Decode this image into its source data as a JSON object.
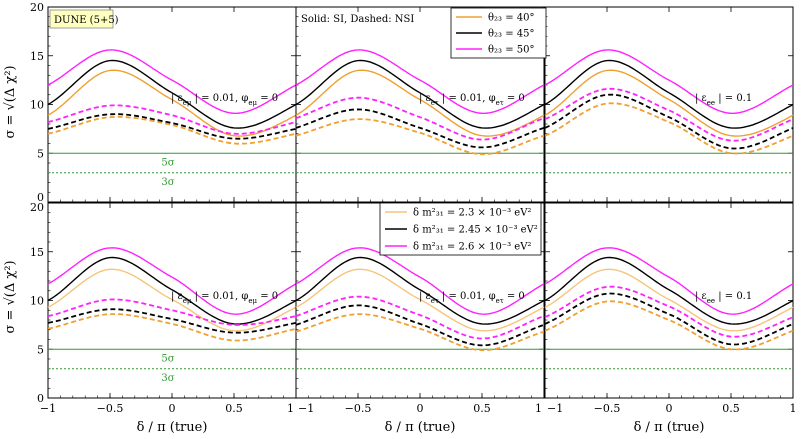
{
  "figure": {
    "ylabel": "σ = √(Δ χ²)",
    "xlabel": "δ / π (true)",
    "tag": "DUNE (5+5)",
    "line_style_note": "Solid: SI,  Dashed: NSI",
    "colors": {
      "orange": "#f0a030",
      "light_orange": "#f6c57a",
      "black": "#000000",
      "magenta": "#ff20ff",
      "green": "#2e9a2e"
    }
  },
  "chart_data": [
    {
      "type": "line",
      "row": 0,
      "col": 0,
      "annotation": "| ε_eμ | = 0.01, φ_eμ = 0",
      "x": [
        -1,
        -0.5,
        0,
        0.5,
        1
      ],
      "xlim": [
        -1,
        1
      ],
      "ylim": [
        0,
        20
      ],
      "xticks": [
        "-1",
        "-0.5",
        "0",
        "0.5",
        "1"
      ],
      "yticks": [
        "0",
        "5",
        "10",
        "15",
        "20"
      ],
      "xlabel": "",
      "ylabel": "σ = √(Δ χ²)",
      "grid": false,
      "series": [
        {
          "name": "θ₂₃ = 40°",
          "color": "#f0a030",
          "dash": false,
          "values": [
            8.9,
            13.5,
            10.5,
            6.8,
            8.9
          ]
        },
        {
          "name": "θ₂₃ = 45°",
          "color": "#000000",
          "dash": false,
          "values": [
            10.0,
            14.5,
            11.2,
            7.6,
            10.0
          ]
        },
        {
          "name": "θ₂₃ = 50°",
          "color": "#ff20ff",
          "dash": false,
          "values": [
            12.0,
            15.6,
            12.5,
            9.1,
            12.0
          ]
        },
        {
          "color": "#f0a030",
          "dash": true,
          "values": [
            7.0,
            8.7,
            7.9,
            6.0,
            7.0
          ]
        },
        {
          "color": "#000000",
          "dash": true,
          "values": [
            7.5,
            9.0,
            8.1,
            6.5,
            7.5
          ]
        },
        {
          "color": "#ff20ff",
          "dash": true,
          "values": [
            8.2,
            9.9,
            8.9,
            7.0,
            8.2
          ]
        }
      ],
      "reference_lines": [
        {
          "y": 5,
          "label": "5σ",
          "style": "solid"
        },
        {
          "y": 3,
          "label": "3σ",
          "style": "dashed"
        }
      ]
    },
    {
      "type": "line",
      "row": 0,
      "col": 1,
      "annotation": "| ε_eτ | = 0.01, φ_eτ = 0",
      "x": [
        -1,
        -0.5,
        0,
        0.5,
        1
      ],
      "xlim": [
        -1,
        1
      ],
      "ylim": [
        0,
        20
      ],
      "xticks": [
        "-1",
        "-0.5",
        "0",
        "0.5",
        "1"
      ],
      "yticks": [],
      "grid": false,
      "series": [
        {
          "color": "#f0a030",
          "dash": false,
          "values": [
            8.9,
            13.5,
            10.5,
            6.8,
            8.9
          ]
        },
        {
          "color": "#000000",
          "dash": false,
          "values": [
            10.0,
            14.5,
            11.2,
            7.6,
            10.0
          ]
        },
        {
          "color": "#ff20ff",
          "dash": false,
          "values": [
            12.0,
            15.6,
            12.5,
            9.1,
            12.0
          ]
        },
        {
          "color": "#f0a030",
          "dash": true,
          "values": [
            6.8,
            8.5,
            7.1,
            4.9,
            6.8
          ]
        },
        {
          "color": "#000000",
          "dash": true,
          "values": [
            7.6,
            9.5,
            7.6,
            5.6,
            7.6
          ]
        },
        {
          "color": "#ff20ff",
          "dash": true,
          "values": [
            8.6,
            10.7,
            8.7,
            6.4,
            8.6
          ]
        }
      ],
      "reference_lines": [
        {
          "y": 5,
          "style": "solid"
        },
        {
          "y": 3,
          "style": "dashed"
        }
      ]
    },
    {
      "type": "line",
      "row": 0,
      "col": 2,
      "annotation": "| ε_ee | = 0.1",
      "x": [
        -1,
        -0.5,
        0,
        0.5,
        1
      ],
      "xlim": [
        -1,
        1
      ],
      "ylim": [
        0,
        20
      ],
      "xticks": [
        "-1",
        "-0.5",
        "0",
        "0.5",
        "1"
      ],
      "yticks": [],
      "grid": false,
      "series": [
        {
          "color": "#f0a030",
          "dash": false,
          "values": [
            8.9,
            13.5,
            10.5,
            6.8,
            8.9
          ]
        },
        {
          "color": "#000000",
          "dash": false,
          "values": [
            10.0,
            14.5,
            11.2,
            7.6,
            10.0
          ]
        },
        {
          "color": "#ff20ff",
          "dash": false,
          "values": [
            12.0,
            15.6,
            12.5,
            9.1,
            12.0
          ]
        },
        {
          "color": "#f0a030",
          "dash": true,
          "values": [
            6.8,
            10.1,
            8.2,
            5.0,
            6.8
          ]
        },
        {
          "color": "#000000",
          "dash": true,
          "values": [
            7.6,
            11.0,
            8.7,
            5.5,
            7.6
          ]
        },
        {
          "color": "#ff20ff",
          "dash": true,
          "values": [
            8.5,
            11.6,
            9.4,
            6.3,
            8.5
          ]
        }
      ],
      "reference_lines": [
        {
          "y": 5,
          "style": "solid"
        },
        {
          "y": 3,
          "style": "dashed"
        }
      ]
    },
    {
      "type": "line",
      "row": 1,
      "col": 0,
      "annotation": "| ε_eμ | = 0.01, φ_eμ = 0",
      "x": [
        -1,
        -0.5,
        0,
        0.5,
        1
      ],
      "xlim": [
        -1,
        1
      ],
      "ylim": [
        0,
        20
      ],
      "xticks": [
        "-1",
        "-0.5",
        "0",
        "0.5",
        "1"
      ],
      "yticks": [
        "0",
        "5",
        "10",
        "15",
        "20"
      ],
      "xlabel": "δ / π (true)",
      "ylabel": "σ = √(Δ χ²)",
      "grid": false,
      "series": [
        {
          "name": "δ m²₃₁ = 2.3 × 10⁻³ eV²",
          "color": "#f6c57a",
          "dash": false,
          "values": [
            9.3,
            13.2,
            10.1,
            6.9,
            9.3
          ]
        },
        {
          "name": "δ m²₃₁ = 2.45 × 10⁻³ eV²",
          "color": "#000000",
          "dash": false,
          "values": [
            10.0,
            14.4,
            11.1,
            7.6,
            10.0
          ]
        },
        {
          "name": "δ m²₃₁ = 2.6 × 10⁻³ eV²",
          "color": "#ff20ff",
          "dash": false,
          "values": [
            11.7,
            15.4,
            12.4,
            8.6,
            11.7
          ]
        },
        {
          "color": "#f0a030",
          "dash": true,
          "values": [
            7.1,
            8.6,
            7.6,
            5.9,
            7.1
          ]
        },
        {
          "color": "#000000",
          "dash": true,
          "values": [
            7.7,
            9.1,
            8.1,
            6.7,
            7.7
          ]
        },
        {
          "color": "#ff20ff",
          "dash": true,
          "values": [
            8.4,
            10.1,
            9.0,
            7.5,
            8.4
          ]
        }
      ],
      "reference_lines": [
        {
          "y": 5,
          "label": "5σ",
          "style": "solid"
        },
        {
          "y": 3,
          "label": "3σ",
          "style": "dashed"
        }
      ]
    },
    {
      "type": "line",
      "row": 1,
      "col": 1,
      "annotation": "| ε_eτ | = 0.01, φ_eτ = 0",
      "x": [
        -1,
        -0.5,
        0,
        0.5,
        1
      ],
      "xlim": [
        -1,
        1
      ],
      "ylim": [
        0,
        20
      ],
      "xticks": [
        "-1",
        "-0.5",
        "0",
        "0.5",
        "1"
      ],
      "yticks": [],
      "xlabel": "δ / π (true)",
      "grid": false,
      "series": [
        {
          "color": "#f6c57a",
          "dash": false,
          "values": [
            9.3,
            13.2,
            10.1,
            6.9,
            9.3
          ]
        },
        {
          "color": "#000000",
          "dash": false,
          "values": [
            10.0,
            14.4,
            11.1,
            7.6,
            10.0
          ]
        },
        {
          "color": "#ff20ff",
          "dash": false,
          "values": [
            11.7,
            15.4,
            12.4,
            8.6,
            11.7
          ]
        },
        {
          "color": "#f0a030",
          "dash": true,
          "values": [
            6.8,
            8.6,
            7.1,
            4.9,
            6.8
          ]
        },
        {
          "color": "#000000",
          "dash": true,
          "values": [
            7.5,
            9.5,
            7.6,
            5.4,
            7.5
          ]
        },
        {
          "color": "#ff20ff",
          "dash": true,
          "values": [
            8.4,
            10.4,
            8.5,
            6.1,
            8.4
          ]
        }
      ],
      "reference_lines": [
        {
          "y": 5,
          "style": "solid"
        },
        {
          "y": 3,
          "style": "dashed"
        }
      ]
    },
    {
      "type": "line",
      "row": 1,
      "col": 2,
      "annotation": "| ε_ee | = 0.1",
      "x": [
        -1,
        -0.5,
        0,
        0.5,
        1
      ],
      "xlim": [
        -1,
        1
      ],
      "ylim": [
        0,
        20
      ],
      "xticks": [
        "-1",
        "-0.5",
        "0",
        "0.5",
        "1"
      ],
      "yticks": [],
      "xlabel": "δ / π (true)",
      "grid": false,
      "series": [
        {
          "color": "#f6c57a",
          "dash": false,
          "values": [
            9.3,
            13.2,
            10.1,
            6.9,
            9.3
          ]
        },
        {
          "color": "#000000",
          "dash": false,
          "values": [
            10.0,
            14.4,
            11.1,
            7.6,
            10.0
          ]
        },
        {
          "color": "#ff20ff",
          "dash": false,
          "values": [
            11.7,
            15.4,
            12.4,
            8.6,
            11.7
          ]
        },
        {
          "color": "#f0a030",
          "dash": true,
          "values": [
            6.9,
            9.9,
            8.0,
            5.0,
            6.9
          ]
        },
        {
          "color": "#000000",
          "dash": true,
          "values": [
            7.6,
            10.7,
            8.6,
            5.5,
            7.6
          ]
        },
        {
          "color": "#ff20ff",
          "dash": true,
          "values": [
            8.3,
            11.4,
            9.4,
            6.3,
            8.3
          ]
        }
      ],
      "reference_lines": [
        {
          "y": 5,
          "style": "solid"
        },
        {
          "y": 3,
          "style": "dashed"
        }
      ]
    }
  ]
}
